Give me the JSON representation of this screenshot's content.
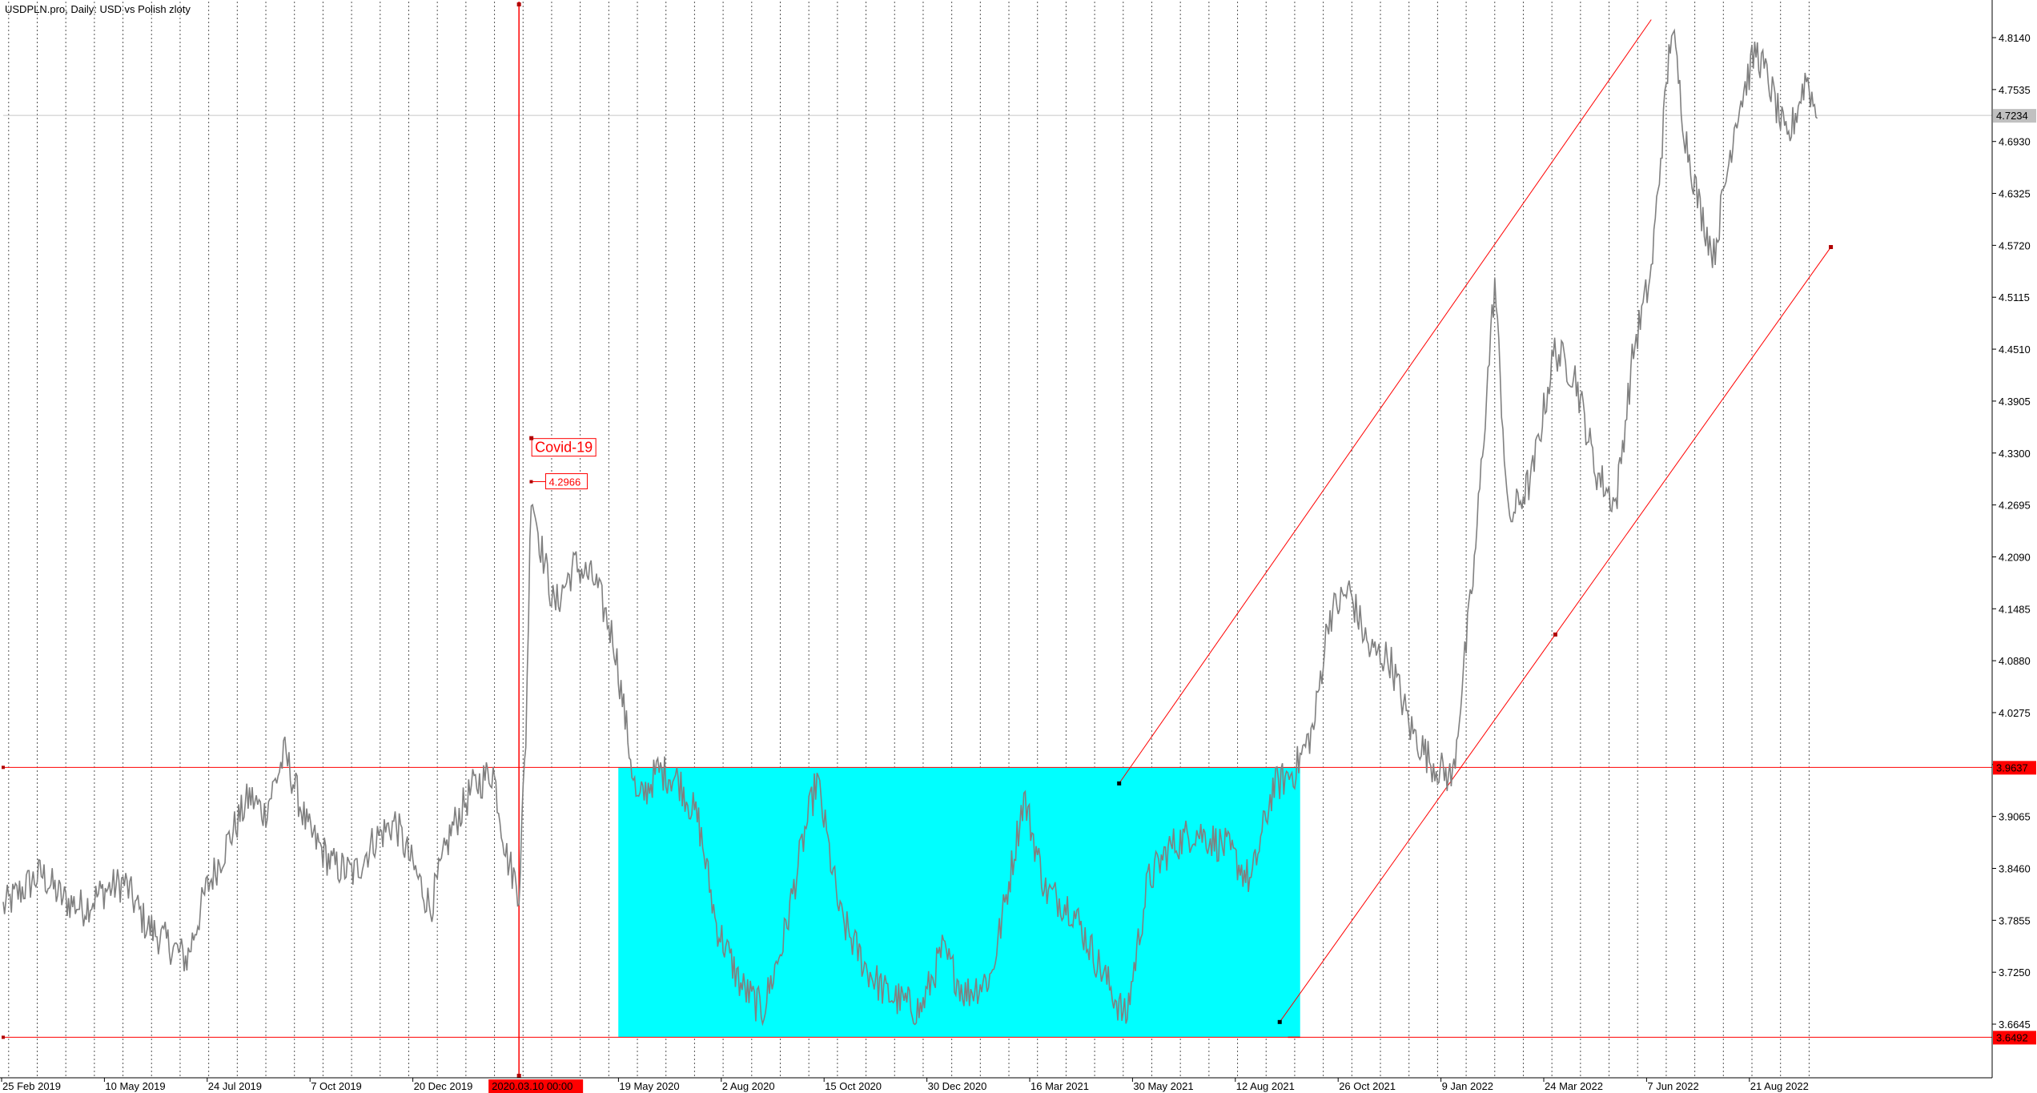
{
  "chart_data": {
    "type": "line",
    "title": "USDPLN.pro, Daily:  USD vs Polish zloty",
    "ylim": [
      3.602,
      4.856
    ],
    "yticks": [
      "4.8140",
      "4.7535",
      "4.6930",
      "4.6325",
      "4.5720",
      "4.5115",
      "4.4510",
      "4.3905",
      "4.3300",
      "4.2695",
      "4.2090",
      "4.1485",
      "4.0880",
      "4.0275",
      "3.9670",
      "3.9065",
      "3.8460",
      "3.7855",
      "3.7250",
      "3.6645"
    ],
    "xticks": [
      "25 Feb 2019",
      "10 May 2019",
      "24 Jul 2019",
      "7 Oct 2019",
      "20 Dec 2019",
      "19 May 2020",
      "2 Aug 2020",
      "15 Oct 2020",
      "30 Dec 2020",
      "16 Mar 2021",
      "30 May 2021",
      "12 Aug 2021",
      "26 Oct 2021",
      "9 Jan 2022",
      "24 Mar 2022",
      "7 Jun 2022",
      "21 Aug 2022"
    ],
    "grid": "vertical-dotted",
    "series": [
      {
        "color": "#808080",
        "x": [
          "2019-02-25",
          "2019-03-10",
          "2019-03-25",
          "2019-04-10",
          "2019-04-25",
          "2019-05-10",
          "2019-05-25",
          "2019-06-10",
          "2019-06-25",
          "2019-07-10",
          "2019-07-24",
          "2019-08-10",
          "2019-08-25",
          "2019-09-05",
          "2019-09-20",
          "2019-10-07",
          "2019-10-25",
          "2019-11-10",
          "2019-11-25",
          "2019-12-10",
          "2019-12-20",
          "2020-01-05",
          "2020-01-20",
          "2020-02-05",
          "2020-02-20",
          "2020-03-01",
          "2020-03-10",
          "2020-03-15",
          "2020-03-19",
          "2020-03-25",
          "2020-04-05",
          "2020-04-20",
          "2020-05-05",
          "2020-05-19",
          "2020-06-05",
          "2020-06-20",
          "2020-07-05",
          "2020-07-20",
          "2020-08-02",
          "2020-08-20",
          "2020-09-05",
          "2020-09-20",
          "2020-10-05",
          "2020-10-15",
          "2020-11-01",
          "2020-11-20",
          "2020-12-05",
          "2020-12-30",
          "2021-01-15",
          "2021-02-01",
          "2021-02-20",
          "2021-03-05",
          "2021-03-16",
          "2021-04-01",
          "2021-04-20",
          "2021-05-05",
          "2021-05-30",
          "2021-06-15",
          "2021-07-01",
          "2021-07-20",
          "2021-08-12",
          "2021-08-30",
          "2021-09-15",
          "2021-10-01",
          "2021-10-15",
          "2021-10-26",
          "2021-11-10",
          "2021-11-25",
          "2021-12-10",
          "2021-12-25",
          "2022-01-09",
          "2022-01-25",
          "2022-02-10",
          "2022-02-25",
          "2022-03-07",
          "2022-03-24",
          "2022-04-10",
          "2022-04-25",
          "2022-05-10",
          "2022-05-25",
          "2022-06-07",
          "2022-06-20",
          "2022-07-05",
          "2022-07-15",
          "2022-07-25",
          "2022-08-05",
          "2022-08-21",
          "2022-09-05",
          "2022-09-15",
          "2022-09-28",
          "2022-10-05",
          "2022-10-12",
          "2022-10-20"
        ],
        "values": [
          3.8,
          3.82,
          3.84,
          3.81,
          3.8,
          3.82,
          3.83,
          3.78,
          3.76,
          3.74,
          3.82,
          3.88,
          3.93,
          3.91,
          3.98,
          3.89,
          3.85,
          3.84,
          3.88,
          3.9,
          3.86,
          3.8,
          3.89,
          3.94,
          3.96,
          3.86,
          3.82,
          4.0,
          4.29,
          4.23,
          4.15,
          4.2,
          4.18,
          4.11,
          3.92,
          3.96,
          3.95,
          3.9,
          3.78,
          3.71,
          3.68,
          3.76,
          3.88,
          3.95,
          3.79,
          3.73,
          3.7,
          3.68,
          3.75,
          3.7,
          3.72,
          3.83,
          3.93,
          3.82,
          3.8,
          3.75,
          3.67,
          3.83,
          3.87,
          3.89,
          3.87,
          3.83,
          3.94,
          3.96,
          4.01,
          4.14,
          4.17,
          4.1,
          4.09,
          4.01,
          3.97,
          3.95,
          4.2,
          4.53,
          4.25,
          4.3,
          4.45,
          4.42,
          4.31,
          4.27,
          4.45,
          4.54,
          4.83,
          4.7,
          4.62,
          4.56,
          4.72,
          4.8,
          4.76,
          4.69,
          4.73,
          4.77,
          4.72
        ]
      }
    ],
    "current_price": "4.7234",
    "levels": [
      {
        "label": "3.9637",
        "value": 3.9637,
        "color": "#ff0000"
      },
      {
        "label": "3.6492",
        "value": 3.6492,
        "color": "#ff0000"
      }
    ],
    "annotations": {
      "event_label": "Covid-19",
      "event_date_label": "2020.03.10 00:00",
      "event_date": "2020-03-10",
      "peak_label": "4.2966",
      "peak_value": 4.2966,
      "peak_date": "2020-03-19"
    },
    "range_box": {
      "x_start": "2020-05-22",
      "x_end": "2021-10-05",
      "y_low": 3.6492,
      "y_high": 3.9637,
      "color": "#00ffff"
    },
    "channel": {
      "color": "#ff0000",
      "upper": {
        "x1": "2021-05-25",
        "y1": 3.945,
        "x2": "2022-06-20",
        "y2": 4.835
      },
      "lower": {
        "x1": "2021-09-20",
        "y1": 3.667,
        "x2": "2022-10-30",
        "y2": 4.57
      }
    },
    "flat_segment": {
      "x1": "2021-09-26",
      "x2": "2021-10-05",
      "y": 3.6492
    }
  }
}
